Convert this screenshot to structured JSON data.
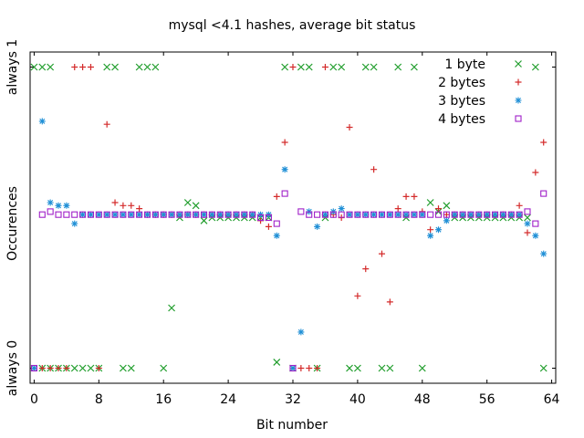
{
  "chart_data": {
    "type": "scatter",
    "title": "mysql <4.1 hashes, average bit status",
    "xlabel": "Bit number",
    "ylabel": "Occurences",
    "x_ticks": [
      0,
      8,
      16,
      24,
      32,
      40,
      48,
      56,
      64
    ],
    "xlim": [
      -0.5,
      64.5
    ],
    "ylim": [
      -0.05,
      1.05
    ],
    "y_category_labels": [
      {
        "text": "always 1",
        "value": 1.0
      },
      {
        "text": "always 0",
        "value": 0.0
      }
    ],
    "grid": false,
    "legend_position": "top-right",
    "series": [
      {
        "name": "1 byte",
        "marker": "x",
        "color": "#1f9d2b",
        "points": [
          [
            0,
            1
          ],
          [
            1,
            0
          ],
          [
            1,
            1
          ],
          [
            2,
            0
          ],
          [
            2,
            1
          ],
          [
            3,
            0
          ],
          [
            4,
            0
          ],
          [
            5,
            0
          ],
          [
            6,
            0
          ],
          [
            7,
            0
          ],
          [
            8,
            0
          ],
          [
            9,
            1
          ],
          [
            10,
            1
          ],
          [
            11,
            0
          ],
          [
            12,
            0
          ],
          [
            13,
            1
          ],
          [
            14,
            1
          ],
          [
            15,
            1
          ],
          [
            16,
            0
          ],
          [
            17,
            0.2
          ],
          [
            18,
            0.5
          ],
          [
            19,
            0.55
          ],
          [
            20,
            0.54
          ],
          [
            21,
            0.49
          ],
          [
            22,
            0.5
          ],
          [
            23,
            0.5
          ],
          [
            24,
            0.5
          ],
          [
            25,
            0.5
          ],
          [
            26,
            0.5
          ],
          [
            27,
            0.5
          ],
          [
            28,
            0.5
          ],
          [
            29,
            0.5
          ],
          [
            30,
            0.02
          ],
          [
            31,
            1
          ],
          [
            32,
            0.0
          ],
          [
            33,
            1
          ],
          [
            34,
            1
          ],
          [
            35,
            0.0
          ],
          [
            36,
            0.5
          ],
          [
            37,
            1
          ],
          [
            38,
            1
          ],
          [
            39,
            0.0
          ],
          [
            40,
            0.0
          ],
          [
            41,
            1
          ],
          [
            42,
            1
          ],
          [
            43,
            0.0
          ],
          [
            44,
            0.0
          ],
          [
            45,
            1
          ],
          [
            46,
            0.5
          ],
          [
            47,
            1
          ],
          [
            48,
            0.0
          ],
          [
            49,
            0.55
          ],
          [
            50,
            0.52
          ],
          [
            51,
            0.54
          ],
          [
            52,
            0.5
          ],
          [
            53,
            0.5
          ],
          [
            54,
            0.5
          ],
          [
            55,
            0.5
          ],
          [
            56,
            0.5
          ],
          [
            57,
            0.5
          ],
          [
            58,
            0.5
          ],
          [
            59,
            0.5
          ],
          [
            60,
            0.5
          ],
          [
            61,
            0.5
          ],
          [
            62,
            1
          ],
          [
            63,
            0.0
          ]
        ]
      },
      {
        "name": "2 bytes",
        "marker": "+",
        "color": "#d42b2b",
        "points": [
          [
            0,
            0
          ],
          [
            1,
            0
          ],
          [
            2,
            0
          ],
          [
            3,
            0
          ],
          [
            4,
            0
          ],
          [
            5,
            1
          ],
          [
            6,
            1
          ],
          [
            7,
            1
          ],
          [
            8,
            0
          ],
          [
            9,
            0.81
          ],
          [
            10,
            0.55
          ],
          [
            11,
            0.54
          ],
          [
            12,
            0.54
          ],
          [
            13,
            0.53
          ],
          [
            14,
            0.51
          ],
          [
            15,
            0.51
          ],
          [
            16,
            0.51
          ],
          [
            17,
            0.51
          ],
          [
            18,
            0.51
          ],
          [
            19,
            0.51
          ],
          [
            20,
            0.51
          ],
          [
            21,
            0.51
          ],
          [
            22,
            0.51
          ],
          [
            23,
            0.51
          ],
          [
            24,
            0.51
          ],
          [
            25,
            0.51
          ],
          [
            26,
            0.51
          ],
          [
            27,
            0.51
          ],
          [
            28,
            0.49
          ],
          [
            29,
            0.47
          ],
          [
            30,
            0.57
          ],
          [
            31,
            0.75
          ],
          [
            32,
            1
          ],
          [
            33,
            0
          ],
          [
            34,
            0
          ],
          [
            35,
            0
          ],
          [
            36,
            1
          ],
          [
            37,
            0.51
          ],
          [
            38,
            0.5
          ],
          [
            39,
            0.8
          ],
          [
            40,
            0.24
          ],
          [
            41,
            0.33
          ],
          [
            42,
            0.66
          ],
          [
            43,
            0.38
          ],
          [
            44,
            0.22
          ],
          [
            45,
            0.53
          ],
          [
            46,
            0.57
          ],
          [
            47,
            0.57
          ],
          [
            48,
            0.52
          ],
          [
            49,
            0.46
          ],
          [
            50,
            0.53
          ],
          [
            51,
            0.51
          ],
          [
            52,
            0.51
          ],
          [
            53,
            0.51
          ],
          [
            54,
            0.51
          ],
          [
            55,
            0.51
          ],
          [
            56,
            0.51
          ],
          [
            57,
            0.51
          ],
          [
            58,
            0.51
          ],
          [
            59,
            0.51
          ],
          [
            60,
            0.54
          ],
          [
            61,
            0.45
          ],
          [
            62,
            0.65
          ],
          [
            63,
            0.75
          ]
        ]
      },
      {
        "name": "3 bytes",
        "marker": "*",
        "color": "#1f8fd6",
        "points": [
          [
            0,
            0
          ],
          [
            1,
            0.82
          ],
          [
            2,
            0.55
          ],
          [
            3,
            0.54
          ],
          [
            4,
            0.54
          ],
          [
            5,
            0.48
          ],
          [
            6,
            0.51
          ],
          [
            7,
            0.51
          ],
          [
            8,
            0.51
          ],
          [
            9,
            0.51
          ],
          [
            10,
            0.51
          ],
          [
            11,
            0.51
          ],
          [
            12,
            0.51
          ],
          [
            13,
            0.51
          ],
          [
            14,
            0.51
          ],
          [
            15,
            0.51
          ],
          [
            16,
            0.51
          ],
          [
            17,
            0.51
          ],
          [
            18,
            0.51
          ],
          [
            19,
            0.51
          ],
          [
            20,
            0.51
          ],
          [
            21,
            0.51
          ],
          [
            22,
            0.51
          ],
          [
            23,
            0.51
          ],
          [
            24,
            0.51
          ],
          [
            25,
            0.51
          ],
          [
            26,
            0.51
          ],
          [
            27,
            0.51
          ],
          [
            28,
            0.51
          ],
          [
            29,
            0.51
          ],
          [
            30,
            0.44
          ],
          [
            31,
            0.66
          ],
          [
            32,
            0
          ],
          [
            33,
            0.12
          ],
          [
            34,
            0.52
          ],
          [
            35,
            0.47
          ],
          [
            36,
            0.51
          ],
          [
            37,
            0.52
          ],
          [
            38,
            0.53
          ],
          [
            39,
            0.51
          ],
          [
            40,
            0.51
          ],
          [
            41,
            0.51
          ],
          [
            42,
            0.51
          ],
          [
            43,
            0.51
          ],
          [
            44,
            0.51
          ],
          [
            45,
            0.51
          ],
          [
            46,
            0.51
          ],
          [
            47,
            0.51
          ],
          [
            48,
            0.51
          ],
          [
            49,
            0.44
          ],
          [
            50,
            0.46
          ],
          [
            51,
            0.49
          ],
          [
            52,
            0.51
          ],
          [
            53,
            0.51
          ],
          [
            54,
            0.51
          ],
          [
            55,
            0.51
          ],
          [
            56,
            0.51
          ],
          [
            57,
            0.51
          ],
          [
            58,
            0.51
          ],
          [
            59,
            0.51
          ],
          [
            60,
            0.51
          ],
          [
            61,
            0.48
          ],
          [
            62,
            0.44
          ],
          [
            63,
            0.38
          ]
        ]
      },
      {
        "name": "4 bytes",
        "marker": "square",
        "color": "#a020c8",
        "points": [
          [
            0,
            0
          ],
          [
            1,
            0.51
          ],
          [
            2,
            0.52
          ],
          [
            3,
            0.51
          ],
          [
            4,
            0.51
          ],
          [
            5,
            0.51
          ],
          [
            6,
            0.51
          ],
          [
            7,
            0.51
          ],
          [
            8,
            0.51
          ],
          [
            9,
            0.51
          ],
          [
            10,
            0.51
          ],
          [
            11,
            0.51
          ],
          [
            12,
            0.51
          ],
          [
            13,
            0.51
          ],
          [
            14,
            0.51
          ],
          [
            15,
            0.51
          ],
          [
            16,
            0.51
          ],
          [
            17,
            0.51
          ],
          [
            18,
            0.51
          ],
          [
            19,
            0.51
          ],
          [
            20,
            0.51
          ],
          [
            21,
            0.51
          ],
          [
            22,
            0.51
          ],
          [
            23,
            0.51
          ],
          [
            24,
            0.51
          ],
          [
            25,
            0.51
          ],
          [
            26,
            0.51
          ],
          [
            27,
            0.51
          ],
          [
            28,
            0.5
          ],
          [
            29,
            0.5
          ],
          [
            30,
            0.48
          ],
          [
            31,
            0.58
          ],
          [
            32,
            0
          ],
          [
            33,
            0.52
          ],
          [
            34,
            0.51
          ],
          [
            35,
            0.51
          ],
          [
            36,
            0.51
          ],
          [
            37,
            0.51
          ],
          [
            38,
            0.51
          ],
          [
            39,
            0.51
          ],
          [
            40,
            0.51
          ],
          [
            41,
            0.51
          ],
          [
            42,
            0.51
          ],
          [
            43,
            0.51
          ],
          [
            44,
            0.51
          ],
          [
            45,
            0.51
          ],
          [
            46,
            0.51
          ],
          [
            47,
            0.51
          ],
          [
            48,
            0.51
          ],
          [
            49,
            0.51
          ],
          [
            50,
            0.51
          ],
          [
            51,
            0.51
          ],
          [
            52,
            0.51
          ],
          [
            53,
            0.51
          ],
          [
            54,
            0.51
          ],
          [
            55,
            0.51
          ],
          [
            56,
            0.51
          ],
          [
            57,
            0.51
          ],
          [
            58,
            0.51
          ],
          [
            59,
            0.51
          ],
          [
            60,
            0.51
          ],
          [
            61,
            0.52
          ],
          [
            62,
            0.48
          ],
          [
            63,
            0.58
          ]
        ]
      }
    ]
  }
}
